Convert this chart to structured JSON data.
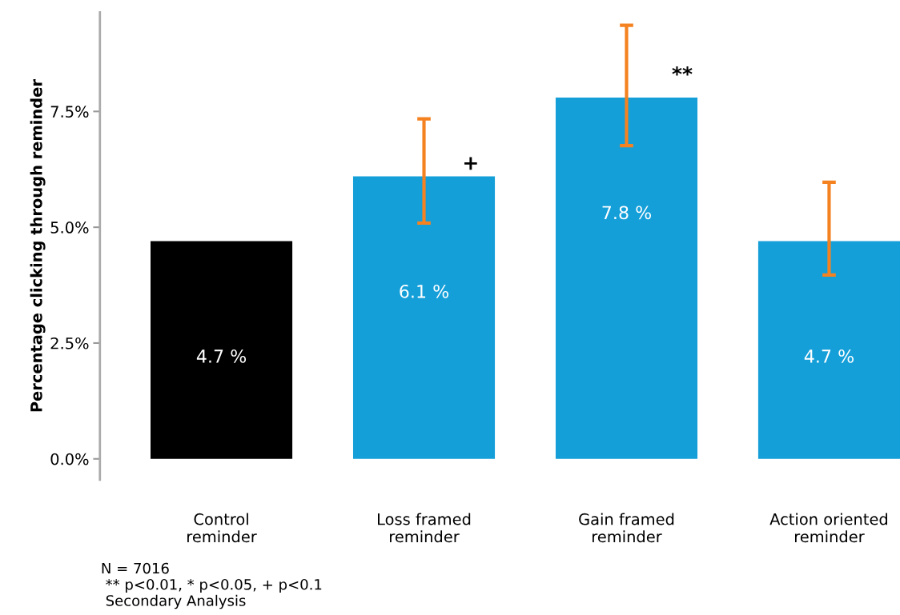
{
  "chart_data": {
    "type": "bar",
    "ylabel": "Percentage clicking through reminder",
    "categories": [
      "Control\nreminder",
      "Loss framed\nreminder",
      "Gain framed\nreminder",
      "Action oriented\nreminder"
    ],
    "values": [
      4.7,
      6.1,
      7.8,
      4.7
    ],
    "colors": [
      "#000000",
      "#159fd9",
      "#159fd9",
      "#159fd9"
    ],
    "errors": [
      null,
      [
        5.09,
        7.34
      ],
      [
        6.76,
        9.36
      ],
      [
        3.97,
        5.97
      ]
    ],
    "value_labels": [
      "4.7 %",
      "6.1 %",
      "7.8 %",
      "4.7 %"
    ],
    "ylim": [
      -0.45,
      9.64
    ],
    "yticks": [
      {
        "value": 0,
        "label": "0.0%"
      },
      {
        "value": 2.5,
        "label": "2.5%"
      },
      {
        "value": 5,
        "label": "5.0%"
      },
      {
        "value": 7.5,
        "label": "7.5%"
      }
    ],
    "grid": false,
    "legend": false,
    "annotations": [
      "+",
      "**",
      "N = 7016\n ** p<0.01, * p<0.05, + p<0.1\n Secondary Analysis"
    ]
  }
}
